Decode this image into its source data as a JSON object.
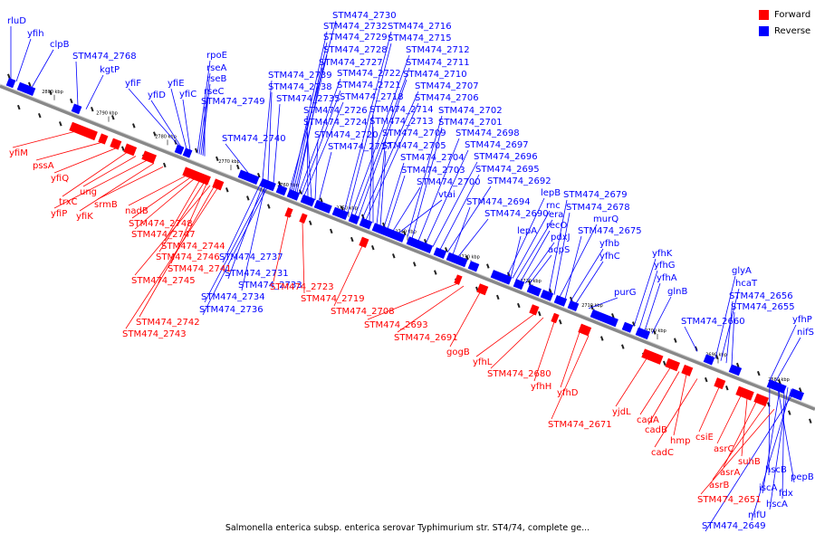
{
  "legend": [
    {
      "label": "Forward",
      "color": "#ff0000"
    },
    {
      "label": "Reverse",
      "color": "#0000ff"
    }
  ],
  "caption": "Salmonella enterica subsp. enterica serovar Typhimurium str. ST4/74, complete ge...",
  "colors": {
    "forward": "#ff0000",
    "reverse": "#0000ff",
    "backbone": "#888888"
  },
  "ticks": [
    "2800 kbp",
    "2790 kbp",
    "2780 kbp",
    "2770 kbp",
    "2760 kbp",
    "2750 kbp",
    "2740 kbp",
    "2730 kbp",
    "2720 kbp",
    "2710 kbp",
    "2700 kbp",
    "2690 kbp",
    "2680 kbp"
  ],
  "reverse_labels": [
    "rluD",
    "yfih",
    "clpB",
    "STM474_2768",
    "kgtP",
    "yfiF",
    "yfiD",
    "yfiE",
    "yfiC",
    "rpoE",
    "rseA",
    "rseB",
    "rseC",
    "STM474_2749",
    "STM474_2740",
    "STM474_2739",
    "STM474_2738",
    "STM474_2735",
    "STM474_2730",
    "STM474_2732",
    "STM474_2729",
    "STM474_2728",
    "STM474_2727",
    "STM474_2722",
    "STM474_2721",
    "STM474_2718",
    "STM474_2726",
    "STM474_2724",
    "STM474_2720",
    "STM474_2717",
    "STM474_2716",
    "STM474_2715",
    "STM474_2712",
    "STM474_2711",
    "STM474_2710",
    "STM474_2707",
    "STM474_2706",
    "STM474_2714",
    "STM474_2713",
    "STM474_2709",
    "STM474_2705",
    "STM474_2704",
    "STM474_2703",
    "STM474_2700",
    "vtai",
    "STM474_2702",
    "STM474_2701",
    "STM474_2698",
    "STM474_2697",
    "STM474_2696",
    "STM474_2695",
    "STM474_2692",
    "STM474_2694",
    "STM474_2690",
    "lepB",
    "rnc",
    "era",
    "recO",
    "pdxJ",
    "acpS",
    "lepA",
    "STM474_2679",
    "STM474_2678",
    "murQ",
    "STM474_2675",
    "yfhb",
    "yfhC",
    "purG",
    "yfhK",
    "yfhG",
    "yfhA",
    "glnB",
    "glyA",
    "hcaT",
    "STM474_2656",
    "STM474_2655",
    "STM474_2660",
    "yfhP",
    "nifS",
    "STM474_2737",
    "STM474_2731",
    "STM474_2733",
    "STM474_2734",
    "STM474_2736",
    "hscB",
    "pepB",
    "iscA",
    "fdx",
    "hscA",
    "nifU",
    "STM474_2649"
  ],
  "forward_labels": [
    "yfiM",
    "pssA",
    "yfiQ",
    "trxC",
    "ung",
    "yfiP",
    "yfiK",
    "srmB",
    "nadB",
    "STM474_2748",
    "STM474_2747",
    "STM474_2744",
    "STM474_2746",
    "STM474_2741",
    "STM474_2745",
    "STM474_2742",
    "STM474_2743",
    "STM474_2723",
    "STM474_2719",
    "STM474_2708",
    "STM474_2693",
    "STM474_2691",
    "gogB",
    "yfhL",
    "STM474_2680",
    "yfhH",
    "yfhD",
    "STM474_2671",
    "yjdL",
    "cadA",
    "cadB",
    "hmp",
    "cadC",
    "csiE",
    "asrC",
    "suhB",
    "asrA",
    "asrB",
    "STM474_2651"
  ]
}
